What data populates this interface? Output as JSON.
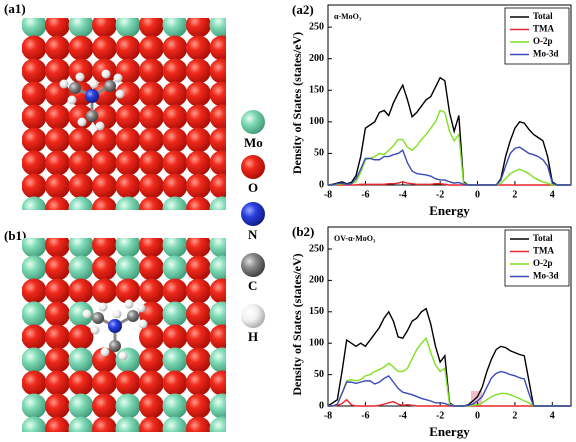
{
  "panels": {
    "a1": "(a1)",
    "b1": "(b1)"
  },
  "atom_legend": [
    "Mo",
    "O",
    "N",
    "C",
    "H"
  ],
  "chart_data": [
    {
      "type": "line",
      "panel_label": "(a2)",
      "title": "α-MoO₃",
      "xlabel": "Energy",
      "ylabel": "Density of States (states/eV)",
      "x": [
        -8,
        -7.75,
        -7.5,
        -7.25,
        -7,
        -6.75,
        -6.5,
        -6.25,
        -6,
        -5.75,
        -5.5,
        -5.25,
        -5,
        -4.75,
        -4.5,
        -4.25,
        -4,
        -3.75,
        -3.5,
        -3.25,
        -3,
        -2.75,
        -2.5,
        -2.25,
        -2,
        -1.75,
        -1.5,
        -1.25,
        -1,
        -0.75,
        -0.5,
        -0.25,
        0,
        0.25,
        0.5,
        0.75,
        1,
        1.25,
        1.5,
        1.75,
        2,
        2.25,
        2.5,
        2.75,
        3,
        3.25,
        3.5,
        3.75,
        4,
        4.25,
        4.5,
        4.75,
        5
      ],
      "xlim": [
        -8,
        5
      ],
      "xticks": [
        -8,
        -6,
        -4,
        -2,
        0,
        2,
        4
      ],
      "ylim": [
        0,
        285
      ],
      "yticks": [
        0,
        50,
        100,
        150,
        200,
        250
      ],
      "legend": "upper right",
      "series": [
        {
          "name": "Total",
          "color": "#000000",
          "values": [
            0,
            1,
            3,
            5,
            2,
            4,
            15,
            45,
            90,
            95,
            100,
            115,
            118,
            110,
            130,
            145,
            158,
            135,
            108,
            115,
            125,
            135,
            140,
            155,
            170,
            165,
            115,
            85,
            110,
            5,
            0,
            0,
            0,
            0,
            0,
            0,
            0,
            10,
            45,
            70,
            90,
            100,
            98,
            88,
            80,
            75,
            70,
            45,
            5,
            0,
            0,
            0,
            0
          ]
        },
        {
          "name": "TMA",
          "color": "#e8262b",
          "values": [
            0,
            0,
            0,
            0,
            0,
            0,
            0,
            1,
            1,
            1,
            1,
            1,
            1,
            2,
            2,
            3,
            5,
            3,
            2,
            1,
            1,
            1,
            1,
            2,
            2,
            1,
            0,
            0,
            0,
            0,
            0,
            0,
            0,
            0,
            0,
            0,
            0,
            0,
            0,
            0,
            0,
            0,
            0,
            0,
            0,
            0,
            0,
            0,
            0,
            0,
            0,
            0,
            0
          ]
        },
        {
          "name": "O-2p",
          "color": "#7fe021",
          "values": [
            0,
            0,
            1,
            2,
            1,
            2,
            5,
            20,
            40,
            42,
            45,
            50,
            48,
            55,
            62,
            72,
            72,
            60,
            55,
            62,
            72,
            80,
            90,
            100,
            118,
            115,
            85,
            70,
            80,
            3,
            0,
            0,
            0,
            0,
            0,
            0,
            0,
            3,
            10,
            18,
            22,
            25,
            22,
            18,
            12,
            8,
            5,
            3,
            0,
            0,
            0,
            0,
            0
          ]
        },
        {
          "name": "Mo-3d",
          "color": "#3a4bb8",
          "values": [
            0,
            0,
            2,
            3,
            1,
            2,
            10,
            25,
            42,
            42,
            40,
            40,
            45,
            45,
            48,
            50,
            55,
            35,
            22,
            18,
            17,
            16,
            14,
            10,
            8,
            8,
            5,
            3,
            4,
            1,
            0,
            0,
            0,
            0,
            0,
            0,
            0,
            8,
            30,
            50,
            58,
            60,
            55,
            50,
            48,
            45,
            40,
            30,
            3,
            0,
            0,
            0,
            0
          ]
        }
      ]
    },
    {
      "type": "line",
      "panel_label": "(b2)",
      "title": "OV-α-MoO₃",
      "xlabel": "Energy",
      "ylabel": "Density of States (states/eV)",
      "x": [
        -8,
        -7.75,
        -7.5,
        -7.25,
        -7,
        -6.75,
        -6.5,
        -6.25,
        -6,
        -5.75,
        -5.5,
        -5.25,
        -5,
        -4.75,
        -4.5,
        -4.25,
        -4,
        -3.75,
        -3.5,
        -3.25,
        -3,
        -2.75,
        -2.5,
        -2.25,
        -2,
        -1.75,
        -1.5,
        -1.25,
        -1,
        -0.75,
        -0.5,
        -0.25,
        0,
        0.25,
        0.5,
        0.75,
        1,
        1.25,
        1.5,
        1.75,
        2,
        2.25,
        2.5,
        2.75,
        3,
        3.25,
        3.5,
        3.75,
        4,
        4.25,
        4.5,
        4.75,
        5
      ],
      "xlim": [
        -8,
        5
      ],
      "xticks": [
        -8,
        -6,
        -4,
        -2,
        0,
        2,
        4
      ],
      "ylim": [
        0,
        285
      ],
      "yticks": [
        0,
        50,
        100,
        150,
        200,
        250
      ],
      "legend": "upper right",
      "series": [
        {
          "name": "Total",
          "color": "#000000",
          "values": [
            0,
            5,
            10,
            55,
            105,
            100,
            95,
            100,
            95,
            105,
            115,
            125,
            140,
            150,
            135,
            110,
            108,
            120,
            135,
            140,
            150,
            155,
            130,
            95,
            70,
            80,
            5,
            0,
            0,
            0,
            2,
            8,
            15,
            30,
            55,
            75,
            90,
            95,
            93,
            88,
            85,
            82,
            80,
            40,
            0,
            0,
            0,
            0,
            0,
            0,
            0,
            0,
            0
          ]
        },
        {
          "name": "TMA",
          "color": "#e8262b",
          "values": [
            0,
            0,
            1,
            4,
            10,
            2,
            0,
            0,
            0,
            0,
            0,
            1,
            3,
            5,
            7,
            3,
            1,
            2,
            1,
            0,
            0,
            0,
            0,
            0,
            0,
            0,
            0,
            0,
            0,
            0,
            0,
            0,
            0,
            0,
            0,
            0,
            0,
            0,
            0,
            0,
            0,
            0,
            0,
            0,
            0,
            0,
            0,
            0,
            0,
            0,
            0,
            0,
            0
          ]
        },
        {
          "name": "O-2p",
          "color": "#7fe021",
          "values": [
            0,
            0,
            3,
            20,
            40,
            42,
            40,
            42,
            48,
            50,
            55,
            58,
            62,
            68,
            62,
            55,
            55,
            60,
            75,
            90,
            100,
            108,
            85,
            65,
            55,
            60,
            3,
            0,
            0,
            0,
            0,
            1,
            2,
            5,
            10,
            15,
            18,
            20,
            20,
            18,
            15,
            12,
            8,
            5,
            0,
            0,
            0,
            0,
            0,
            0,
            0,
            0,
            0
          ]
        },
        {
          "name": "Mo-3d",
          "color": "#3a4bb8",
          "values": [
            0,
            0,
            3,
            20,
            38,
            38,
            36,
            38,
            40,
            40,
            35,
            38,
            44,
            48,
            38,
            28,
            22,
            20,
            18,
            15,
            12,
            10,
            8,
            5,
            5,
            4,
            1,
            0,
            0,
            0,
            1,
            3,
            8,
            15,
            30,
            45,
            52,
            55,
            53,
            50,
            48,
            45,
            43,
            20,
            0,
            0,
            0,
            0,
            0,
            0,
            0,
            0,
            0
          ]
        }
      ]
    }
  ]
}
